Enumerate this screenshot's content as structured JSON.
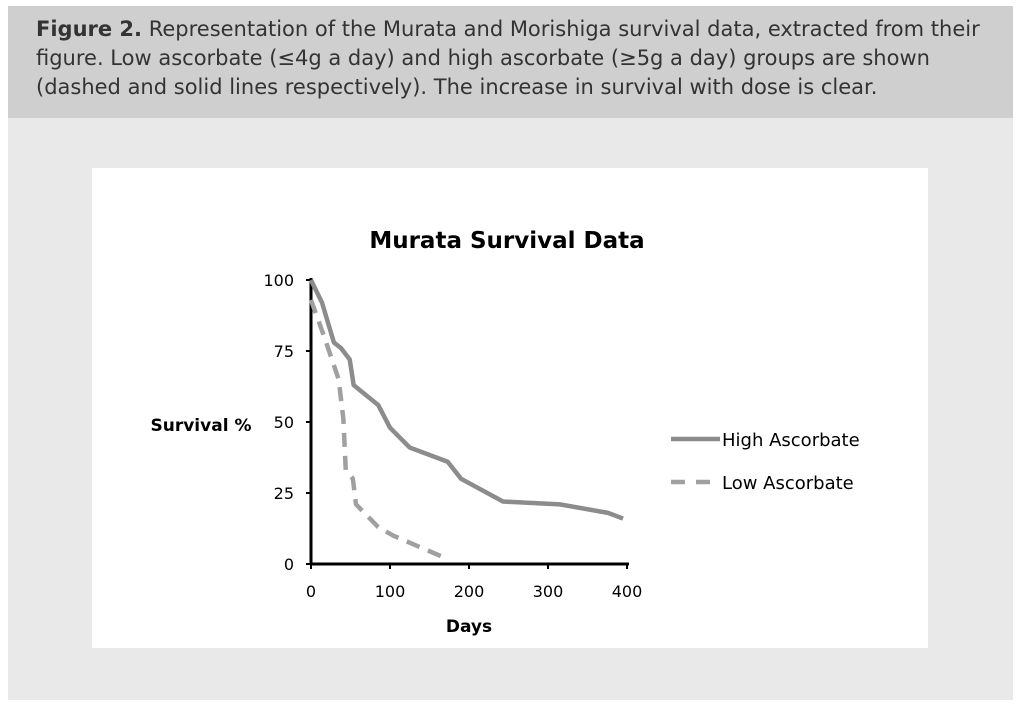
{
  "caption": {
    "label": "Figure 2.",
    "text": " Representation of the Murata and Morishiga survival data, extracted from their figure. Low ascorbate (≤4g a day) and high ascorbate (≥5g a day) groups are shown (dashed and solid lines respectively). The increase in survival with dose is clear."
  },
  "chart_data": {
    "type": "line",
    "title": "Murata Survival Data",
    "xlabel": "Days",
    "ylabel": "Survival %",
    "xlim": [
      0,
      400
    ],
    "ylim": [
      0,
      100
    ],
    "xticks": [
      0,
      100,
      200,
      300,
      400
    ],
    "yticks": [
      0,
      25,
      50,
      75,
      100
    ],
    "grid": false,
    "legend": "right",
    "series": [
      {
        "name": "High Ascorbate",
        "style": "solid",
        "color": "#8c8c8c",
        "points": [
          [
            0,
            100
          ],
          [
            14,
            92
          ],
          [
            29,
            78
          ],
          [
            38,
            76
          ],
          [
            49,
            72
          ],
          [
            54,
            63
          ],
          [
            85,
            56
          ],
          [
            100,
            48
          ],
          [
            125,
            41
          ],
          [
            154,
            38
          ],
          [
            173,
            36
          ],
          [
            190,
            30
          ],
          [
            243,
            22
          ],
          [
            315,
            21
          ],
          [
            376,
            18
          ],
          [
            395,
            16
          ]
        ]
      },
      {
        "name": "Low Ascorbate",
        "style": "dashed",
        "color": "#a0a0a0",
        "points": [
          [
            0,
            93
          ],
          [
            18,
            79
          ],
          [
            35,
            65
          ],
          [
            41,
            51
          ],
          [
            44,
            33
          ],
          [
            53,
            30
          ],
          [
            57,
            21
          ],
          [
            85,
            13
          ],
          [
            104,
            10
          ],
          [
            171,
            2
          ]
        ]
      }
    ]
  }
}
